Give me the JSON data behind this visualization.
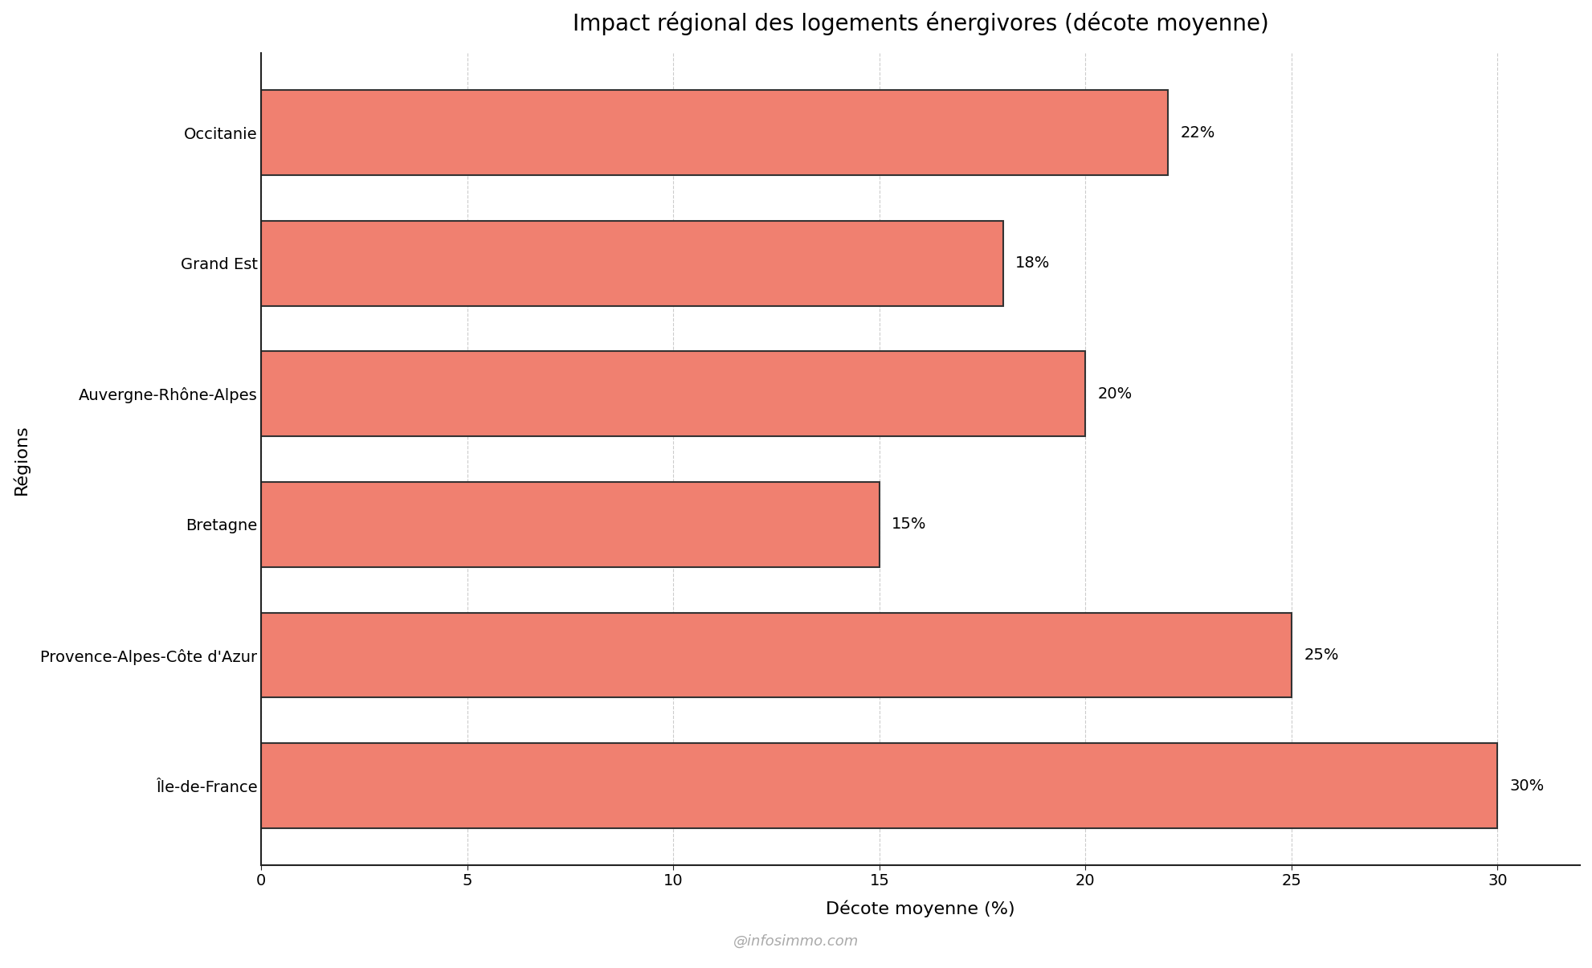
{
  "title": "Impact régional des logements énergivores (décote moyenne)",
  "xlabel": "Décote moyenne (%)",
  "ylabel": "Régions",
  "watermark": "@infosimmo.com",
  "categories": [
    "Île-de-France",
    "Provence-Alpes-Côte d'Azur",
    "Bretagne",
    "Auvergne-Rhône-Alpes",
    "Grand Est",
    "Occitanie"
  ],
  "values": [
    30,
    25,
    15,
    20,
    18,
    22
  ],
  "bar_color": "#F08070",
  "bar_edgecolor": "#333333",
  "bar_linewidth": 1.5,
  "xlim": [
    0,
    32
  ],
  "xticks": [
    0,
    5,
    10,
    15,
    20,
    25,
    30
  ],
  "title_fontsize": 20,
  "axis_label_fontsize": 16,
  "tick_fontsize": 14,
  "annotation_fontsize": 14,
  "watermark_fontsize": 13,
  "watermark_color": "#aaaaaa",
  "background_color": "#ffffff",
  "grid_color": "#cccccc",
  "grid_linestyle": "--",
  "grid_linewidth": 0.8,
  "bar_height": 0.65
}
